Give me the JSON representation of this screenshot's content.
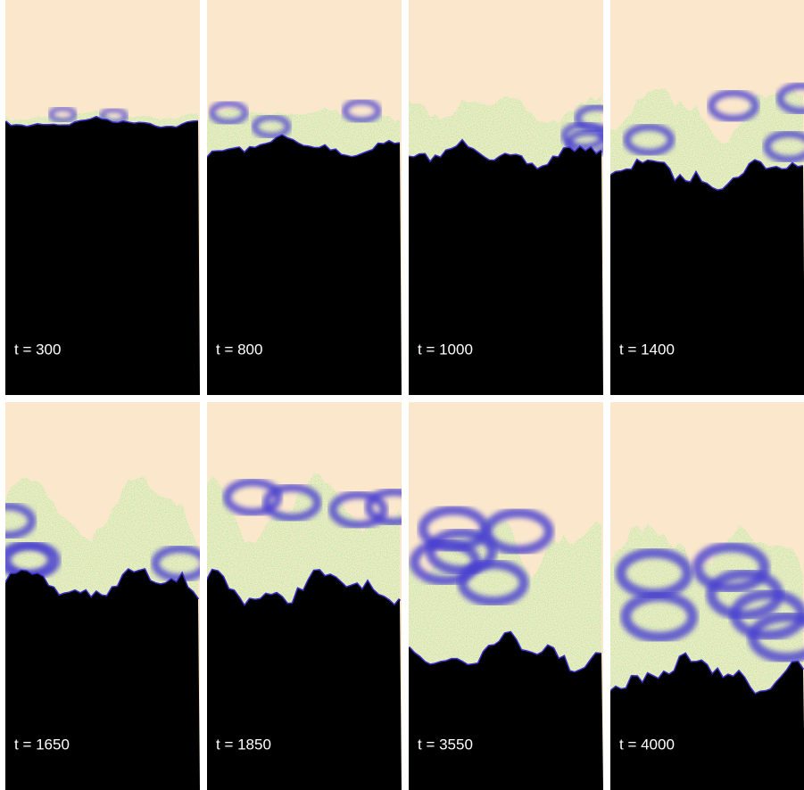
{
  "panels": [
    {
      "label": "t = 300"
    },
    {
      "label": "t = 800"
    },
    {
      "label": "t = 1000"
    },
    {
      "label": "t = 1400"
    },
    {
      "label": "t = 1650"
    },
    {
      "label": "t = 1850"
    },
    {
      "label": "t = 3550"
    },
    {
      "label": "t = 4000"
    }
  ]
}
